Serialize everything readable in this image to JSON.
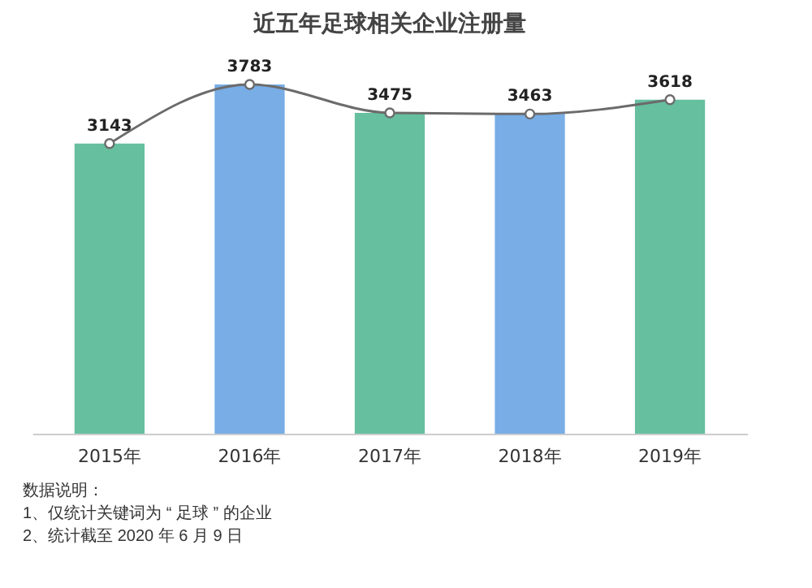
{
  "chart_data": {
    "type": "bar",
    "title": "近五年足球相关企业注册量",
    "categories": [
      "2015年",
      "2016年",
      "2017年",
      "2018年",
      "2019年"
    ],
    "series": [
      {
        "colors": [
          "#66bf9f",
          "#78ade6",
          "#66bf9f",
          "#78ade6",
          "#66bf9f"
        ],
        "values": [
          3143,
          3783,
          3475,
          3463,
          3618
        ]
      },
      {
        "type": "line",
        "color": "#6b6b6b",
        "values": [
          3143,
          3783,
          3475,
          3463,
          3618
        ],
        "value_labels": [
          "3143",
          "3783",
          "3475",
          "3463",
          "3618"
        ]
      }
    ],
    "marker": "circle",
    "annotations": [
      "数据说明：",
      "1、仅统计关键词为 “ 足球 ” 的企业",
      "2、统计截至 2020 年 6 月 9 日"
    ]
  }
}
